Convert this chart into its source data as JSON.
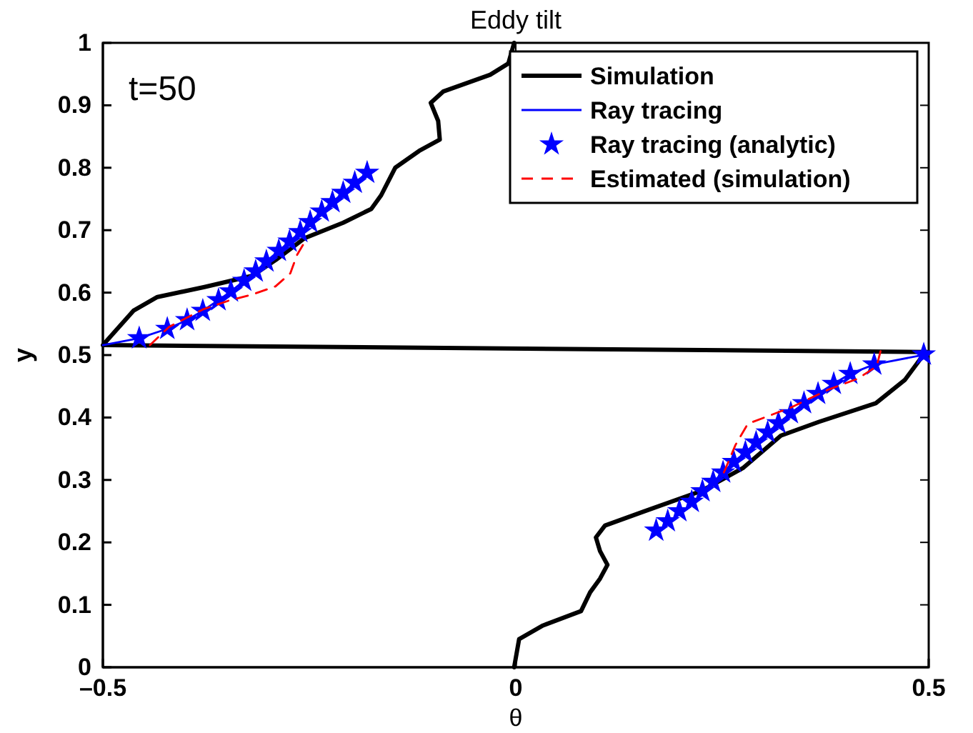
{
  "chart_data": {
    "type": "line",
    "title": "Eddy tilt",
    "xlabel": "θ",
    "ylabel": "y",
    "annotations": [
      "t=50"
    ],
    "xlim": [
      -0.5,
      0.5
    ],
    "ylim": [
      0,
      1
    ],
    "xticks": [
      {
        "value": -0.5,
        "label": "–0.5"
      },
      0,
      0.5
    ],
    "yticks": [
      0,
      0.1,
      0.2,
      0.3,
      0.4,
      0.5,
      0.6,
      0.7,
      0.8,
      0.9,
      1
    ],
    "grid": false,
    "legend": "top right",
    "series": [
      {
        "name": "Simulation",
        "type": "line",
        "color": "#000000",
        "line_style": "solid",
        "marker": "none",
        "x": [
          -0.002,
          0.004,
          0.033,
          0.079,
          0.09,
          0.102,
          0.111,
          0.102,
          0.097,
          0.108,
          0.154,
          0.224,
          0.275,
          0.321,
          0.367,
          0.436,
          0.471,
          0.494,
          0.5,
          -0.5,
          -0.463,
          -0.434,
          -0.377,
          -0.319,
          -0.29,
          -0.256,
          -0.209,
          -0.175,
          -0.163,
          -0.146,
          -0.117,
          -0.092,
          -0.094,
          -0.103,
          -0.088,
          -0.031,
          -0.009,
          -0.002
        ],
        "values": [
          0,
          0.045,
          0.067,
          0.09,
          0.12,
          0.142,
          0.164,
          0.186,
          0.208,
          0.227,
          0.249,
          0.282,
          0.319,
          0.371,
          0.393,
          0.423,
          0.46,
          0.501,
          0.505,
          0.516,
          0.571,
          0.593,
          0.609,
          0.627,
          0.653,
          0.687,
          0.712,
          0.734,
          0.756,
          0.8,
          0.827,
          0.845,
          0.875,
          0.904,
          0.922,
          0.949,
          0.967,
          1
        ]
      },
      {
        "name": "Ray tracing",
        "type": "line",
        "color": "#0000ff",
        "line_style": "solid",
        "marker": "none",
        "x": [
          -0.5,
          -0.456,
          -0.422,
          -0.398,
          -0.379,
          -0.36,
          -0.345,
          -0.329,
          -0.315,
          -0.302,
          -0.287,
          -0.274,
          -0.261,
          -0.249,
          -0.235,
          -0.222,
          -0.209,
          -0.195,
          -0.18,
          0,
          0.226,
          0.239,
          0.251,
          0.264,
          0.278,
          0.291,
          0.305,
          0.318,
          0.333,
          0.349,
          0.366,
          0.385,
          0.405,
          0.434,
          0.5
        ],
        "values": [
          0.516,
          0.527,
          0.542,
          0.556,
          0.571,
          0.588,
          0.602,
          0.619,
          0.634,
          0.65,
          0.667,
          0.682,
          0.697,
          0.713,
          0.73,
          0.745,
          0.76,
          0.776,
          0.792,
          null,
          0.282,
          0.297,
          0.312,
          0.329,
          0.344,
          0.36,
          0.376,
          0.391,
          0.407,
          0.423,
          0.438,
          0.454,
          0.47,
          0.485,
          0.502
        ]
      },
      {
        "name": "Ray tracing (analytic)",
        "type": "scatter",
        "color": "#0000ff",
        "marker": "star",
        "x": [
          -0.456,
          -0.422,
          -0.398,
          -0.379,
          -0.36,
          -0.345,
          -0.329,
          -0.315,
          -0.302,
          -0.287,
          -0.274,
          -0.261,
          -0.249,
          -0.235,
          -0.222,
          -0.209,
          -0.195,
          -0.18,
          0.17,
          0.184,
          0.198,
          0.213,
          0.226,
          0.239,
          0.251,
          0.264,
          0.278,
          0.291,
          0.305,
          0.318,
          0.333,
          0.349,
          0.366,
          0.385,
          0.405,
          0.434,
          0.494
        ],
        "values": [
          0.527,
          0.542,
          0.556,
          0.571,
          0.588,
          0.602,
          0.619,
          0.634,
          0.65,
          0.667,
          0.682,
          0.697,
          0.713,
          0.73,
          0.745,
          0.76,
          0.776,
          0.792,
          0.219,
          0.234,
          0.25,
          0.265,
          0.282,
          0.297,
          0.312,
          0.329,
          0.344,
          0.36,
          0.376,
          0.391,
          0.407,
          0.423,
          0.438,
          0.454,
          0.47,
          0.485,
          0.501
        ]
      },
      {
        "name": "Estimated (simulation)",
        "type": "line",
        "color": "#ff0000",
        "line_style": "dashed",
        "marker": "none",
        "x": [
          -0.443,
          -0.42,
          -0.379,
          -0.348,
          -0.319,
          -0.291,
          -0.273,
          -0.265,
          -0.257,
          0,
          0.252,
          0.266,
          0.281,
          0.333,
          0.379,
          0.414,
          0.437,
          0.442
        ],
        "values": [
          0.516,
          0.545,
          0.573,
          0.587,
          0.597,
          0.61,
          0.631,
          0.66,
          0.678,
          null,
          0.312,
          0.356,
          0.39,
          0.416,
          0.445,
          0.462,
          0.482,
          0.508
        ]
      }
    ]
  }
}
